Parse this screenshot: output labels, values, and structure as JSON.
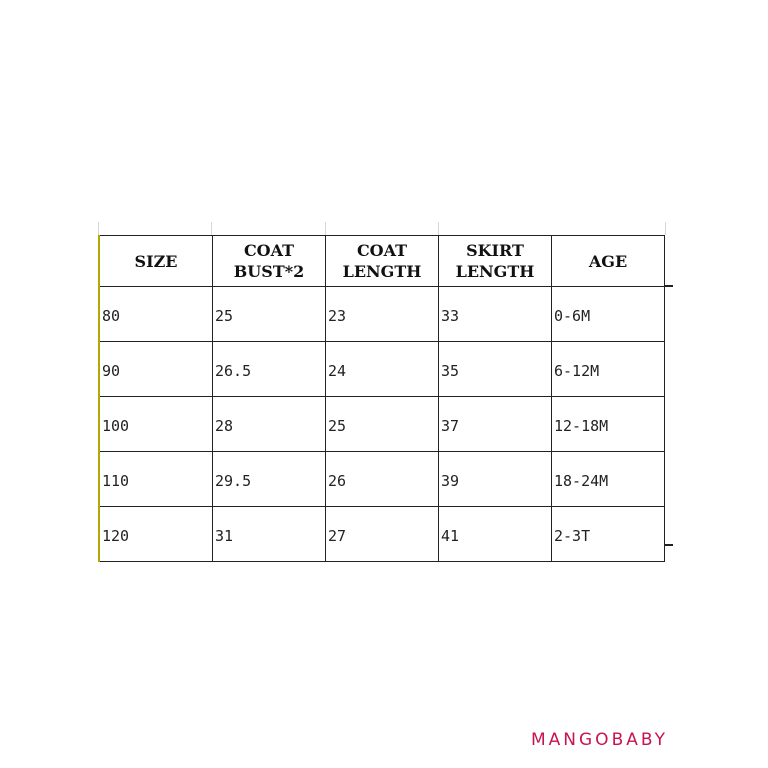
{
  "table": {
    "headers": [
      [
        "SIZE"
      ],
      [
        "COAT",
        "BUST*2"
      ],
      [
        "COAT",
        "LENGTH"
      ],
      [
        "SKIRT",
        "LENGTH"
      ],
      [
        "AGE"
      ]
    ],
    "rows": [
      [
        "80",
        "25",
        "23",
        "33",
        "0-6M"
      ],
      [
        "90",
        "26.5",
        "24",
        "35",
        "6-12M"
      ],
      [
        "100",
        "28",
        "25",
        "37",
        "12-18M"
      ],
      [
        "110",
        "29.5",
        "26",
        "39",
        "18-24M"
      ],
      [
        "120",
        "31",
        "27",
        "41",
        "2-3T"
      ]
    ]
  },
  "brand": {
    "logo_text": "MANGOBABY",
    "color": "#c8134f"
  }
}
